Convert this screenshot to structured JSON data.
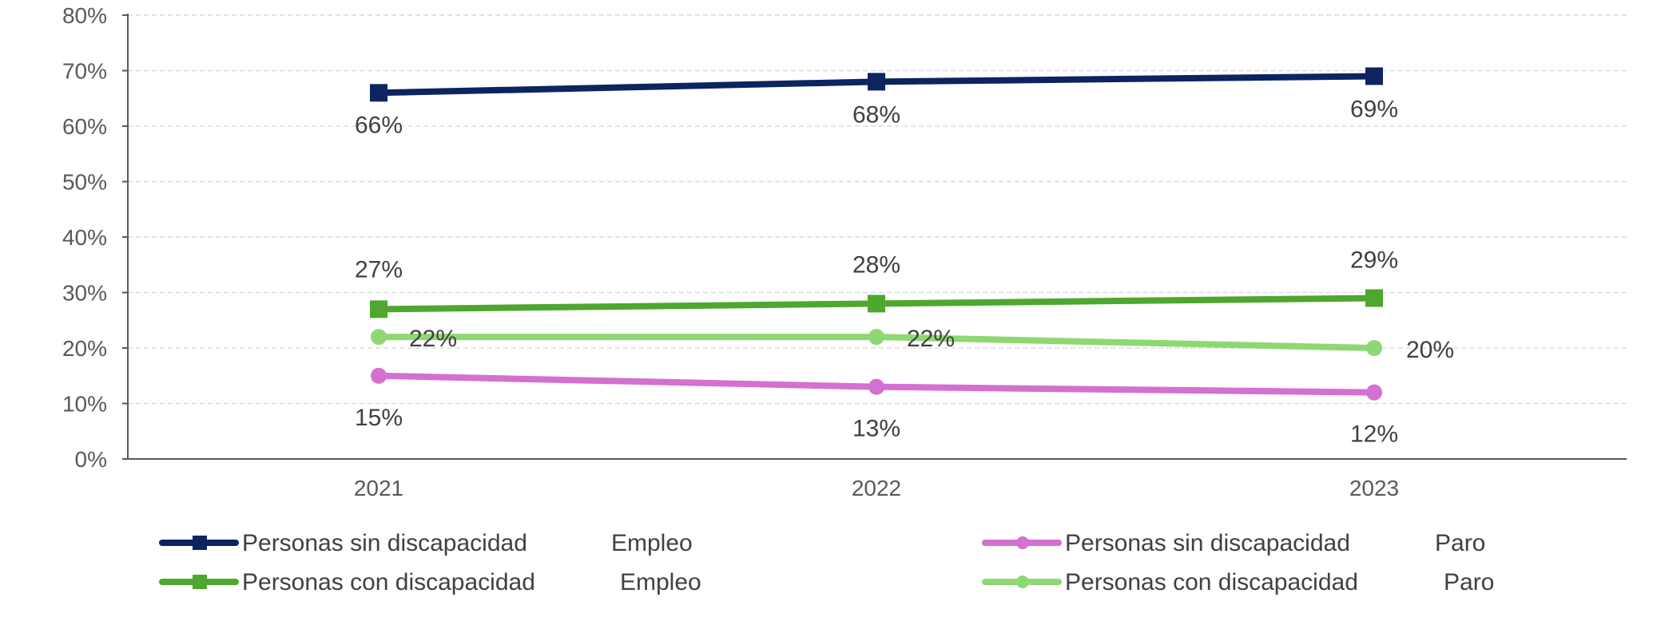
{
  "chart_data": {
    "type": "line",
    "title": "",
    "xlabel": "",
    "ylabel": "",
    "x": [
      "2021",
      "2022",
      "2023"
    ],
    "ylim": [
      0,
      80
    ],
    "yticks": [
      "0%",
      "10%",
      "20%",
      "30%",
      "40%",
      "50%",
      "60%",
      "70%",
      "80%"
    ],
    "grid": true,
    "legend_position": "bottom",
    "series": [
      {
        "name": "Personas sin discapacidad",
        "indicator": "Empleo",
        "values": [
          66,
          68,
          69
        ],
        "labels": [
          "66%",
          "68%",
          "69%"
        ],
        "color": "#0d2461",
        "marker": "square"
      },
      {
        "name": "Personas con discapacidad",
        "indicator": "Empleo",
        "values": [
          27,
          28,
          29
        ],
        "labels": [
          "27%",
          "28%",
          "29%"
        ],
        "color": "#4ea72e",
        "marker": "square"
      },
      {
        "name": "Personas sin discapacidad",
        "indicator": "Paro",
        "values": [
          15,
          13,
          12
        ],
        "labels": [
          "15%",
          "13%",
          "12%"
        ],
        "color": "#d470cf",
        "marker": "circle"
      },
      {
        "name": "Personas con discapacidad",
        "indicator": "Paro",
        "values": [
          22,
          22,
          20
        ],
        "labels": [
          "22%",
          "22%",
          "20%"
        ],
        "color": "#8ed873",
        "marker": "circle"
      }
    ]
  }
}
